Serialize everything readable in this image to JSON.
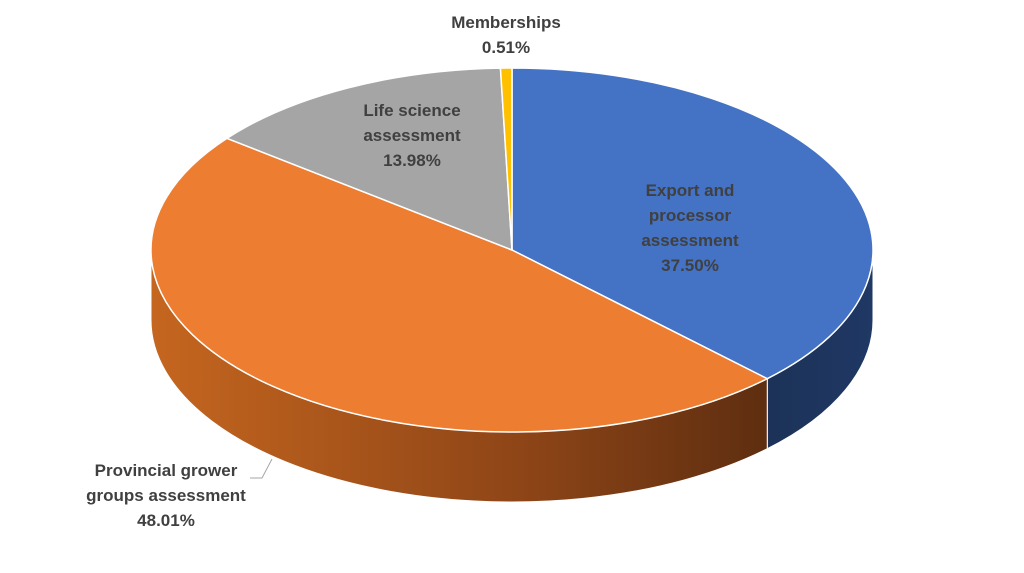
{
  "chart_data": {
    "type": "pie",
    "style": "3d",
    "title": "",
    "slices": [
      {
        "label": "Export and processor assessment",
        "value": 37.5,
        "value_label": "37.50%",
        "color": "#4472C4",
        "side_color": "#1F3864"
      },
      {
        "label": "Provincial grower groups assessment",
        "value": 48.01,
        "value_label": "48.01%",
        "color": "#ED7D31",
        "side_color": "#A8521B"
      },
      {
        "label": "Life science assessment",
        "value": 13.98,
        "value_label": "13.98%",
        "color": "#A5A5A5",
        "side_color": "#6E6E6E"
      },
      {
        "label": "Memberships",
        "value": 0.51,
        "value_label": "0.51%",
        "color": "#FFC000",
        "side_color": "#B38600"
      }
    ],
    "data_labels": [
      {
        "lines": [
          "Export and",
          "processor",
          "assessment",
          "37.50%"
        ]
      },
      {
        "lines": [
          "Provincial grower",
          "groups assessment",
          "48.01%"
        ]
      },
      {
        "lines": [
          "Life science",
          "assessment",
          "13.98%"
        ]
      },
      {
        "lines": [
          "Memberships",
          "0.51%"
        ]
      }
    ],
    "legend": "none"
  }
}
